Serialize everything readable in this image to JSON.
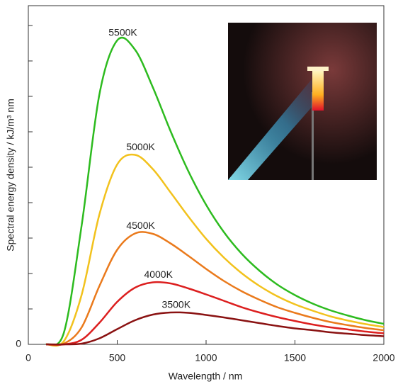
{
  "chart_data": {
    "type": "line",
    "xlabel": "Wavelength / nm",
    "ylabel": "Spectral energy density / kJ/m³ nm",
    "x": [
      100,
      200,
      300,
      400,
      500,
      600,
      700,
      800,
      900,
      1000,
      1100,
      1200,
      1300,
      1400,
      1500,
      1600,
      1700,
      1800,
      1900,
      2000
    ],
    "series": [
      {
        "name": "5500K",
        "color": "#2dbb1f",
        "values": [
          0,
          33,
          336,
          706,
          858,
          832,
          726,
          602,
          489,
          394,
          317,
          256,
          208,
          169,
          139,
          115,
          96,
          81,
          68,
          58
        ]
      },
      {
        "name": "5000K",
        "color": "#f2c21d",
        "values": [
          0,
          9,
          140,
          367,
          508,
          535,
          495,
          429,
          361,
          298,
          245,
          201,
          165,
          136,
          113,
          95,
          79,
          67,
          57,
          49
        ]
      },
      {
        "name": "4500K",
        "color": "#ea7a1c",
        "values": [
          0,
          2,
          48,
          165,
          267,
          313,
          312,
          285,
          250,
          213,
          179,
          150,
          126,
          105,
          89,
          75,
          63,
          54,
          46,
          40
        ]
      },
      {
        "name": "4000K",
        "color": "#dc1f1f",
        "values": [
          0,
          0,
          13,
          61,
          120,
          160,
          175,
          172,
          158,
          141,
          123,
          105,
          90,
          77,
          66,
          56,
          48,
          42,
          36,
          31
        ]
      },
      {
        "name": "3500K",
        "color": "#8a1212",
        "values": [
          0,
          0,
          2,
          17,
          43,
          68,
          84,
          90,
          89,
          83,
          76,
          68,
          60,
          52,
          45,
          40,
          34,
          30,
          26,
          23
        ]
      }
    ],
    "xlim": [
      0,
      2000
    ],
    "xticks": [
      0,
      500,
      1000,
      1500,
      2000
    ],
    "ylim": [
      0,
      956
    ],
    "yticks": [
      0
    ],
    "yminorticks": [
      100,
      200,
      300,
      400,
      500,
      600,
      700,
      800,
      900
    ],
    "grid": false
  }
}
